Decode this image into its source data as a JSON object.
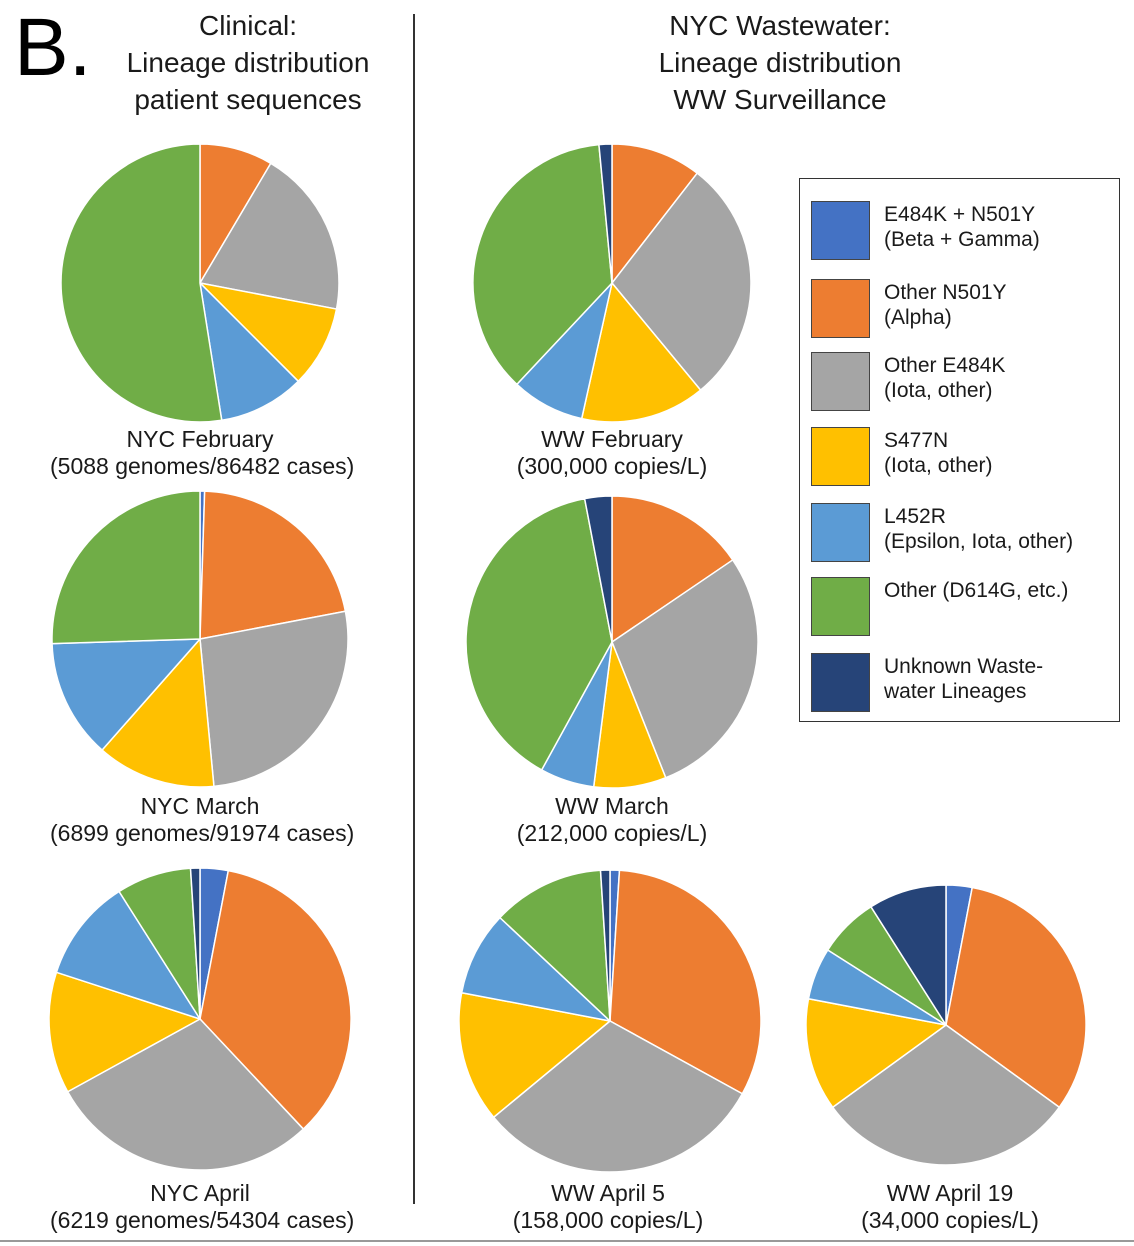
{
  "panel_letter": "B.",
  "clinical_title": [
    "Clinical:",
    "Lineage distribution",
    "patient sequences"
  ],
  "ww_title": [
    "NYC Wastewater:",
    "Lineage distribution",
    "WW Surveillance"
  ],
  "colors": {
    "beta_gamma": "#4472C4",
    "alpha": "#ED7D31",
    "e484k": "#A5A5A5",
    "s477n": "#FFC000",
    "l452r": "#5B9BD5",
    "other": "#70AD47",
    "unknown": "#264478"
  },
  "legend": [
    {
      "key": "beta_gamma",
      "lines": [
        "E484K + N501Y",
        "(Beta + Gamma)"
      ],
      "color": "#4472C4"
    },
    {
      "key": "alpha",
      "lines": [
        "Other N501Y",
        "(Alpha)"
      ],
      "color": "#ED7D31"
    },
    {
      "key": "e484k",
      "lines": [
        "Other E484K",
        "(Iota, other)"
      ],
      "color": "#A5A5A5"
    },
    {
      "key": "s477n",
      "lines": [
        "S477N",
        "(Iota, other)"
      ],
      "color": "#FFC000"
    },
    {
      "key": "l452r",
      "lines": [
        "L452R",
        "(Epsilon, Iota, other)"
      ],
      "color": "#5B9BD5"
    },
    {
      "key": "other",
      "lines": [
        "Other (D614G, etc.)",
        ""
      ],
      "color": "#70AD47"
    },
    {
      "key": "unknown",
      "lines": [
        "Unknown Waste-",
        "water Lineages"
      ],
      "color": "#264478"
    }
  ],
  "chart_data": [
    {
      "type": "pie",
      "id": "nyc-february",
      "caption": [
        "NYC February",
        "(5088 genomes/86482 cases)"
      ],
      "categories": [
        "E484K + N501Y",
        "Other N501Y",
        "Other E484K",
        "S477N",
        "L452R",
        "Other (D614G, etc.)",
        "Unknown Wastewater Lineages"
      ],
      "values": [
        0,
        8.5,
        19.5,
        9.5,
        10,
        52.5,
        0
      ]
    },
    {
      "type": "pie",
      "id": "ww-february",
      "caption": [
        "WW February",
        "(300,000 copies/L)"
      ],
      "categories": [
        "E484K + N501Y",
        "Other N501Y",
        "Other E484K",
        "S477N",
        "L452R",
        "Other (D614G, etc.)",
        "Unknown Wastewater Lineages"
      ],
      "values": [
        0,
        10.5,
        28.5,
        14.5,
        8.5,
        36.5,
        1.5
      ]
    },
    {
      "type": "pie",
      "id": "nyc-march",
      "caption": [
        "NYC March",
        "(6899 genomes/91974 cases)"
      ],
      "categories": [
        "E484K + N501Y",
        "Other N501Y",
        "Other E484K",
        "S477N",
        "L452R",
        "Other (D614G, etc.)",
        "Unknown Wastewater Lineages"
      ],
      "values": [
        0.5,
        21.5,
        26.5,
        13,
        13,
        25.5,
        0
      ]
    },
    {
      "type": "pie",
      "id": "ww-march",
      "caption": [
        "WW March",
        "(212,000 copies/L)"
      ],
      "categories": [
        "E484K + N501Y",
        "Other N501Y",
        "Other E484K",
        "S477N",
        "L452R",
        "Other (D614G, etc.)",
        "Unknown Wastewater Lineages"
      ],
      "values": [
        0,
        15.5,
        28.5,
        8,
        6,
        39,
        3
      ]
    },
    {
      "type": "pie",
      "id": "nyc-april",
      "caption": [
        "NYC April",
        "(6219 genomes/54304 cases)"
      ],
      "categories": [
        "E484K + N501Y",
        "Other N501Y",
        "Other E484K",
        "S477N",
        "L452R",
        "Other (D614G, etc.)",
        "Unknown Wastewater Lineages"
      ],
      "values": [
        3,
        35,
        29,
        13,
        11,
        8,
        1
      ]
    },
    {
      "type": "pie",
      "id": "ww-april-5",
      "caption": [
        "WW April 5",
        "(158,000 copies/L)"
      ],
      "categories": [
        "E484K + N501Y",
        "Other N501Y",
        "Other E484K",
        "S477N",
        "L452R",
        "Other (D614G, etc.)",
        "Unknown Wastewater Lineages"
      ],
      "values": [
        1,
        32,
        31,
        14,
        9,
        12,
        1
      ]
    },
    {
      "type": "pie",
      "id": "ww-april-19",
      "caption": [
        "WW April 19",
        "(34,000 copies/L)"
      ],
      "categories": [
        "E484K + N501Y",
        "Other N501Y",
        "Other E484K",
        "S477N",
        "L452R",
        "Other (D614G, etc.)",
        "Unknown Wastewater Lineages"
      ],
      "values": [
        3,
        32,
        30,
        13,
        6,
        7,
        9
      ]
    }
  ]
}
